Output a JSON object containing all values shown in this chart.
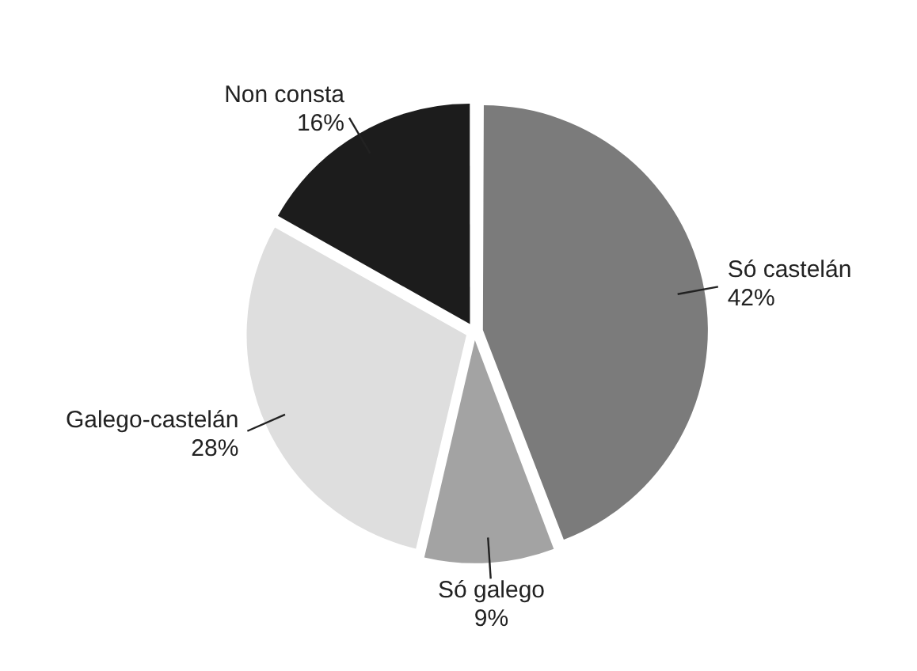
{
  "chart_data": {
    "type": "pie",
    "categories": [
      "Só castelán",
      "Só galego",
      "Galego-castelán",
      "Non consta"
    ],
    "values": [
      42,
      9,
      28,
      16
    ],
    "colors": [
      "#7b7b7b",
      "#a3a3a3",
      "#dedede",
      "#1c1c1c"
    ],
    "value_labels": [
      "42%",
      "9%",
      "28%",
      "16%"
    ]
  }
}
